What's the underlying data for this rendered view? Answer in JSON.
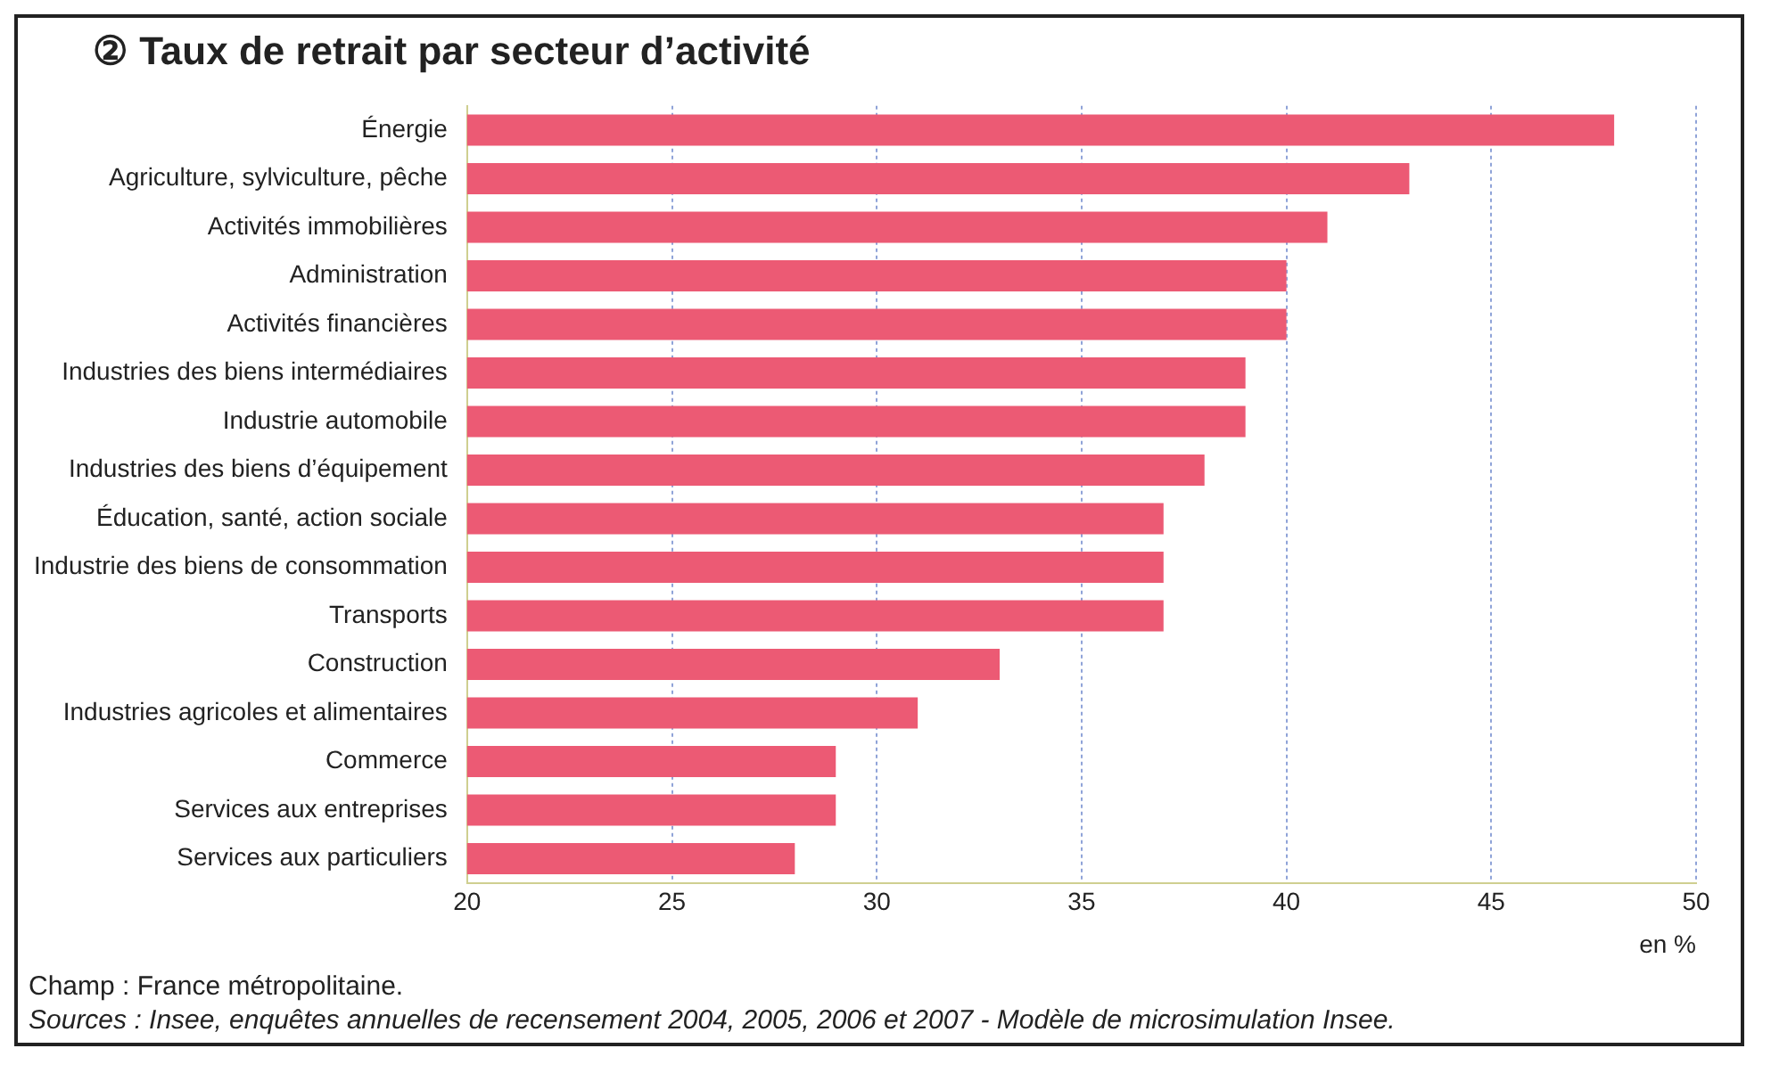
{
  "chart_data": {
    "type": "bar",
    "orientation": "horizontal",
    "title": "② Taux de retrait par secteur d’activité",
    "categories": [
      "Énergie",
      "Agriculture, sylviculture, pêche",
      "Activités immobilières",
      "Administration",
      "Activités financières",
      "Industries des biens intermédiaires",
      "Industrie automobile",
      "Industries des biens d’équipement",
      "Éducation, santé, action sociale",
      "Industrie des biens de consommation",
      "Transports",
      "Construction",
      "Industries agricoles et alimentaires",
      "Commerce",
      "Services aux entreprises",
      "Services aux particuliers"
    ],
    "values": [
      48,
      43,
      41,
      40,
      40,
      39,
      39,
      38,
      37,
      37,
      37,
      33,
      31,
      29,
      29,
      28
    ],
    "color": "#ec5a74",
    "xlim": [
      20,
      50
    ],
    "xticks": [
      20,
      25,
      30,
      35,
      40,
      45,
      50
    ],
    "xlabel": "en %",
    "grid": "x",
    "legend": false,
    "annotations": [
      "Champ : France métropolitaine.",
      "Sources : Insee, enquêtes annuelles de recensement 2004, 2005, 2006 et 2007 - Modèle de microsimulation Insee."
    ]
  }
}
